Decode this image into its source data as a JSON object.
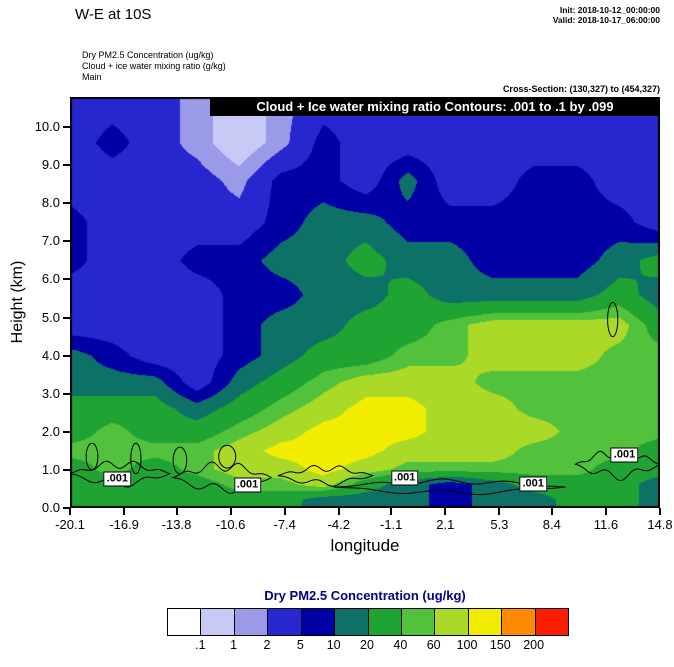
{
  "header": {
    "title": "W-E at 10S",
    "init": "Init: 2018-10-12_00:00:00",
    "valid": "Valid: 2018-10-17_06:00:00",
    "field1": "Dry PM2.5 Concentration   (ug/kg)",
    "field2": "Cloud + ice water mixing ratio   (g/kg)",
    "field3": "Main",
    "cross_section": "Cross-Section: (130,327) to (454,327)"
  },
  "chart_data": {
    "type": "heatmap",
    "title": "W-E at 10S",
    "banner": "Cloud + Ice water mixing ratio Contours: .001 to .1 by .099",
    "xlabel": "longitude",
    "ylabel": "Height (km)",
    "x_range": [
      -20.1,
      14.8
    ],
    "y_range": [
      0,
      10.79
    ],
    "x_ticks": [
      "-20.1",
      "-16.9",
      "-13.8",
      "-10.6",
      "-7.4",
      "-4.2",
      "-1.1",
      "2.1",
      "5.3",
      "8.4",
      "11.6",
      "14.8"
    ],
    "y_ticks": [
      "0.0",
      "1.0",
      "2.0",
      "3.0",
      "4.0",
      "5.0",
      "6.0",
      "7.0",
      "8.0",
      "9.0",
      "10.0"
    ],
    "x": [
      -20.1,
      -17.6,
      -15.1,
      -12.6,
      -10.1,
      -7.6,
      -5.1,
      -2.6,
      -0.1,
      2.4,
      4.9,
      7.4,
      9.9,
      12.4,
      14.8
    ],
    "y": [
      0.2,
      0.6,
      1.0,
      1.5,
      2.0,
      2.6,
      3.3,
      4.0,
      4.8,
      5.6,
      6.5,
      7.5,
      8.6,
      9.6,
      10.8
    ],
    "values": [
      [
        28,
        28,
        28,
        28,
        28,
        28,
        14,
        14,
        14,
        7,
        14,
        14,
        28,
        28,
        14
      ],
      [
        28,
        28,
        28,
        28,
        50,
        50,
        78,
        28,
        14,
        7,
        14,
        28,
        28,
        28,
        14
      ],
      [
        28,
        50,
        28,
        50,
        78,
        78,
        120,
        78,
        50,
        50,
        50,
        50,
        50,
        28,
        28
      ],
      [
        50,
        50,
        50,
        50,
        78,
        120,
        120,
        120,
        78,
        78,
        78,
        50,
        50,
        50,
        28
      ],
      [
        28,
        50,
        28,
        28,
        50,
        78,
        120,
        120,
        120,
        78,
        78,
        78,
        50,
        50,
        50
      ],
      [
        28,
        28,
        28,
        14,
        28,
        50,
        78,
        120,
        120,
        78,
        78,
        50,
        50,
        50,
        50
      ],
      [
        14,
        14,
        14,
        3,
        14,
        28,
        50,
        78,
        78,
        78,
        50,
        50,
        50,
        50,
        50
      ],
      [
        14,
        7,
        3,
        3,
        7,
        14,
        28,
        28,
        50,
        50,
        78,
        78,
        78,
        50,
        50
      ],
      [
        3,
        3,
        3,
        3,
        7,
        14,
        14,
        28,
        28,
        50,
        78,
        78,
        78,
        78,
        28
      ],
      [
        3,
        3,
        3,
        3,
        7,
        7,
        14,
        14,
        28,
        14,
        14,
        14,
        14,
        28,
        14
      ],
      [
        7,
        3,
        3,
        7,
        7,
        14,
        14,
        28,
        14,
        14,
        7,
        7,
        7,
        14,
        28
      ],
      [
        7,
        3,
        3,
        3,
        3,
        7,
        14,
        14,
        7,
        7,
        7,
        7,
        7,
        7,
        3
      ],
      [
        3,
        3,
        3,
        3,
        1.5,
        7,
        7,
        3,
        14,
        3,
        3,
        7,
        7,
        3,
        3
      ],
      [
        3,
        7,
        3,
        1.5,
        0.5,
        1.5,
        7,
        3,
        3,
        3,
        3,
        3,
        3,
        3,
        3
      ],
      [
        3,
        3,
        3,
        1.5,
        0.5,
        1.5,
        3,
        3,
        3,
        3,
        3,
        3,
        3,
        3,
        3
      ]
    ],
    "levels": [
      0.1,
      1,
      2,
      5,
      10,
      20,
      40,
      60,
      100,
      150,
      200
    ],
    "colors": [
      "#ffffff",
      "#c9c9f6",
      "#9a9ae8",
      "#2727cf",
      "#0000a4",
      "#0d7168",
      "#1fa333",
      "#52c13c",
      "#aad927",
      "#f2ed00",
      "#ff8a00",
      "#fb1f00"
    ],
    "colorbar": {
      "title": "Dry PM2.5 Concentration  (ug/kg)",
      "title_color": "#00008b",
      "labels": [
        ".1",
        "1",
        "2",
        "5",
        "10",
        "20",
        "40",
        "60",
        "100",
        "150",
        "200"
      ]
    },
    "contour_labels": [
      {
        "text": ".001",
        "lon": -17.3,
        "km": 0.75
      },
      {
        "text": ".001",
        "lon": -9.6,
        "km": 0.6
      },
      {
        "text": ".001",
        "lon": -0.3,
        "km": 0.8
      },
      {
        "text": ".001",
        "lon": 7.3,
        "km": 0.63
      },
      {
        "text": ".001",
        "lon": 12.7,
        "km": 1.4
      }
    ],
    "cloud_contours": {
      "bands": [
        {
          "lon_start": -20.1,
          "lon_end": -14.2,
          "km": 0.9,
          "amp": 0.25
        },
        {
          "lon_start": -14.0,
          "lon_end": -8.2,
          "km": 0.8,
          "amp": 0.3
        },
        {
          "lon_start": -7.8,
          "lon_end": -2.2,
          "km": 0.85,
          "amp": 0.2
        },
        {
          "lon_start": -4.5,
          "lon_end": 9.2,
          "km": 0.55,
          "amp": 0.15
        },
        {
          "lon_start": 9.8,
          "lon_end": 14.8,
          "km": 1.15,
          "amp": 0.3
        }
      ],
      "ellipses": [
        {
          "lon": 12.0,
          "km": 4.95,
          "rx_lon": 0.3,
          "ry_km": 0.45
        },
        {
          "lon": -18.8,
          "km": 1.35,
          "rx_lon": 0.35,
          "ry_km": 0.35
        },
        {
          "lon": -16.2,
          "km": 1.3,
          "rx_lon": 0.3,
          "ry_km": 0.4
        },
        {
          "lon": -13.6,
          "km": 1.25,
          "rx_lon": 0.4,
          "ry_km": 0.35
        },
        {
          "lon": -10.8,
          "km": 1.35,
          "rx_lon": 0.5,
          "ry_km": 0.3
        }
      ]
    }
  }
}
